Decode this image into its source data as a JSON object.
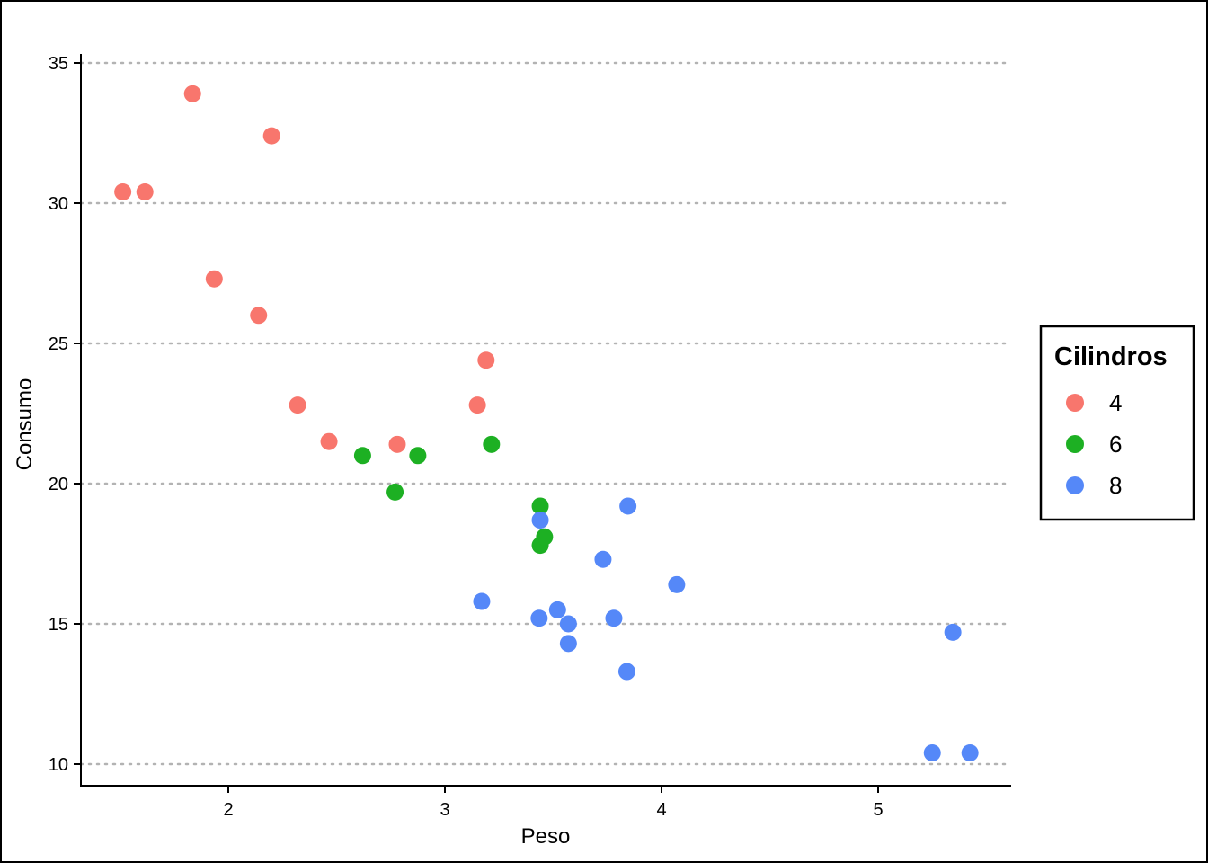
{
  "chart_data": {
    "type": "scatter",
    "title": "",
    "xlabel": "Peso",
    "ylabel": "Consumo",
    "xlim": [
      1.3,
      5.6
    ],
    "ylim": [
      9.2,
      35.4
    ],
    "x_ticks": [
      2,
      3,
      4,
      5
    ],
    "y_ticks": [
      10,
      15,
      20,
      25,
      30,
      35
    ],
    "grid": "horizontal dotted major",
    "legend": {
      "title": "Cilindros",
      "placement": "right"
    },
    "series": [
      {
        "name": "4",
        "color": "#F8766D",
        "points": [
          [
            1.513,
            30.4
          ],
          [
            1.615,
            30.4
          ],
          [
            1.835,
            33.9
          ],
          [
            1.935,
            27.3
          ],
          [
            2.14,
            26.0
          ],
          [
            2.2,
            32.4
          ],
          [
            2.32,
            22.8
          ],
          [
            2.465,
            21.5
          ],
          [
            2.78,
            21.4
          ],
          [
            3.15,
            22.8
          ],
          [
            3.19,
            24.4
          ]
        ]
      },
      {
        "name": "6",
        "color": "#1DB023",
        "points": [
          [
            2.62,
            21.0
          ],
          [
            2.77,
            19.7
          ],
          [
            2.875,
            21.0
          ],
          [
            3.215,
            21.4
          ],
          [
            3.44,
            19.2
          ],
          [
            3.44,
            17.8
          ],
          [
            3.46,
            18.1
          ]
        ]
      },
      {
        "name": "8",
        "color": "#5588F8",
        "points": [
          [
            3.17,
            15.8
          ],
          [
            3.435,
            15.2
          ],
          [
            3.44,
            18.7
          ],
          [
            3.52,
            15.5
          ],
          [
            3.57,
            14.3
          ],
          [
            3.57,
            15.0
          ],
          [
            3.73,
            17.3
          ],
          [
            3.78,
            15.2
          ],
          [
            3.84,
            13.3
          ],
          [
            3.845,
            19.2
          ],
          [
            4.07,
            16.4
          ],
          [
            5.25,
            10.4
          ],
          [
            5.345,
            14.7
          ],
          [
            5.424,
            10.4
          ]
        ]
      }
    ]
  }
}
